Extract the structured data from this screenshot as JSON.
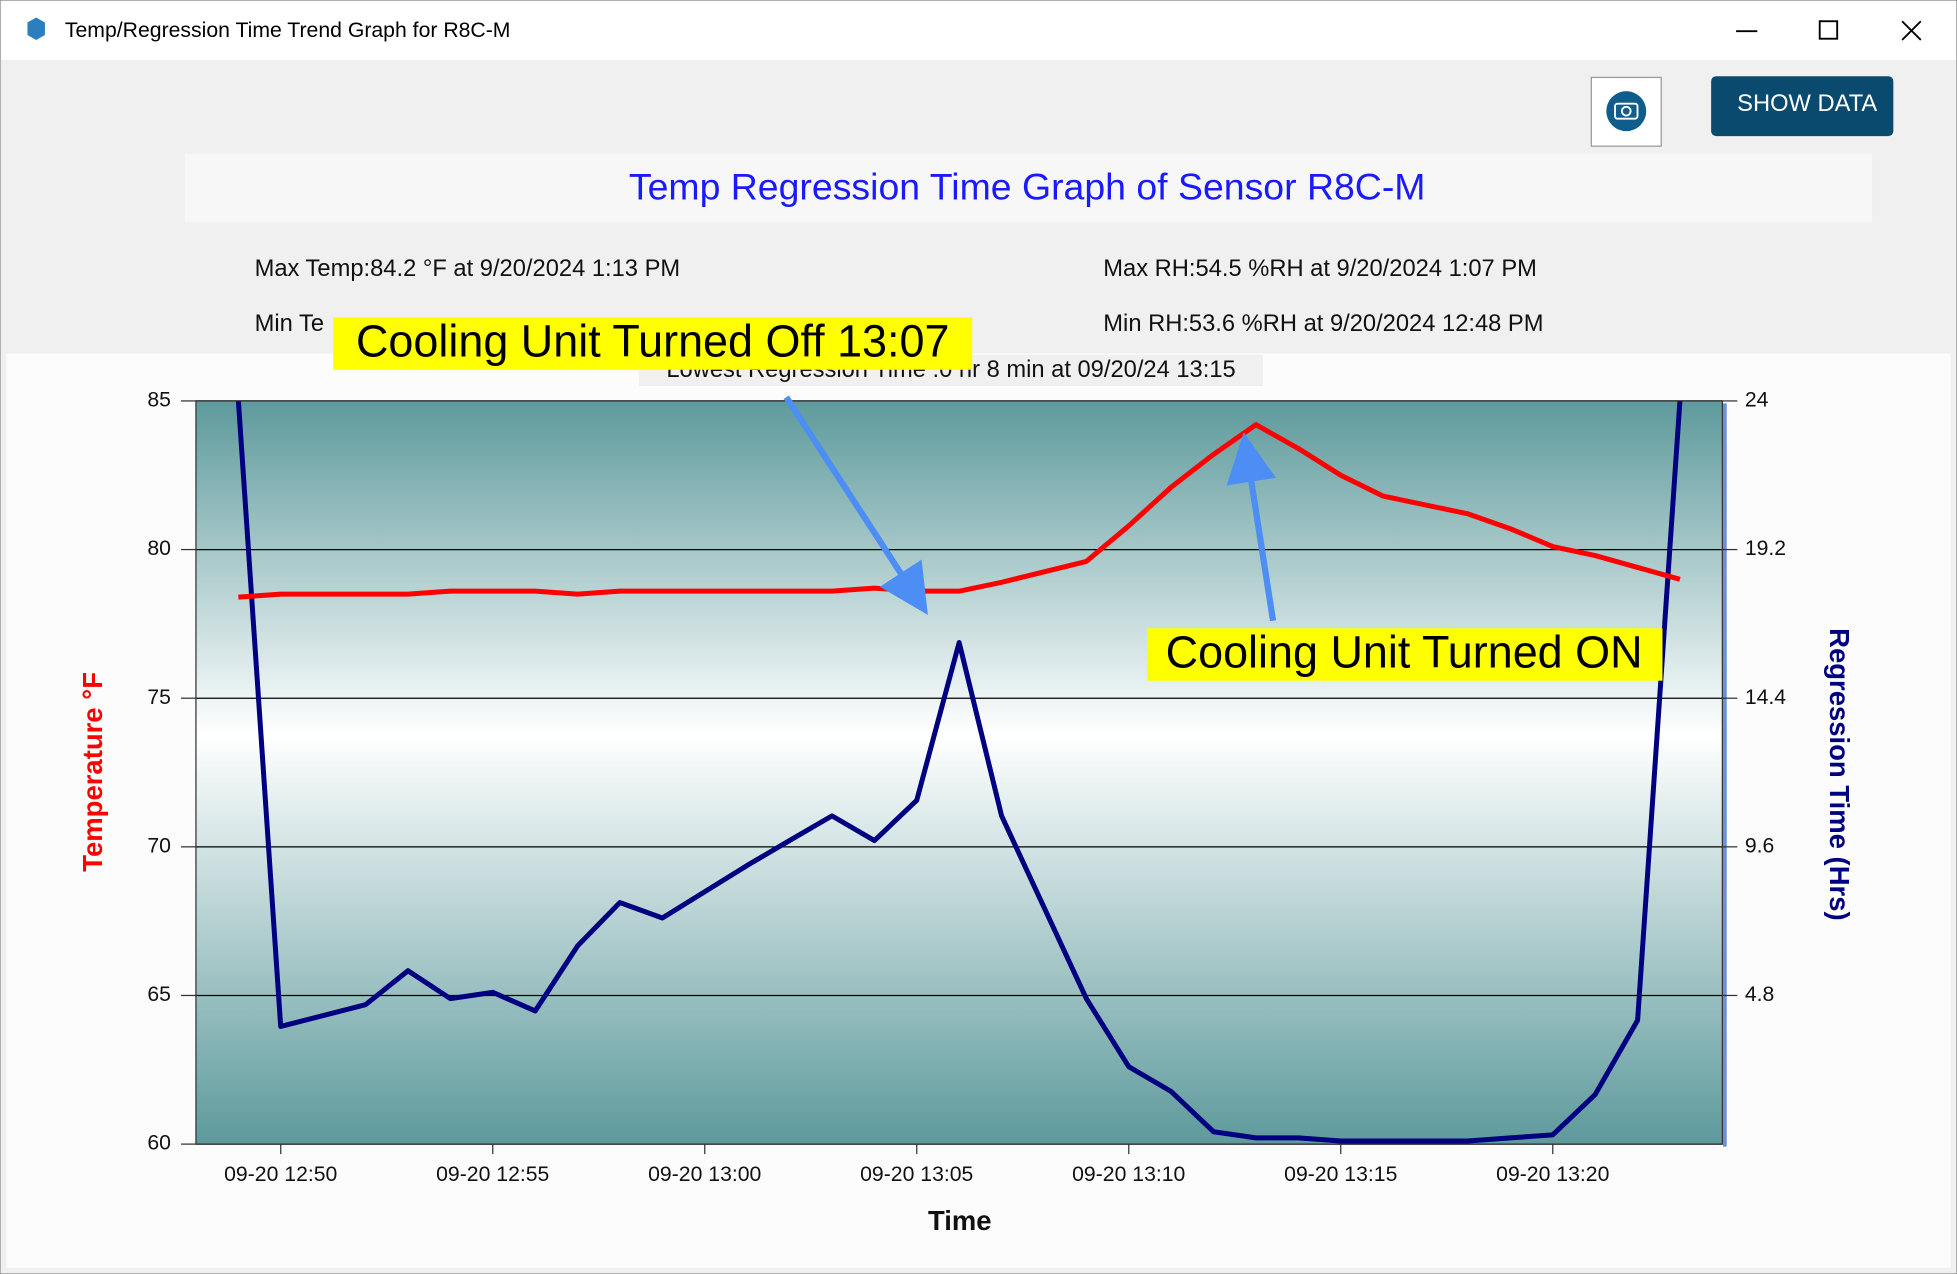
{
  "window": {
    "title": "Temp/Regression Time Trend Graph for R8C-M",
    "button": "SHOW DATA"
  },
  "header": {
    "title": "Temp  Regression Time Graph of Sensor R8C-M",
    "max_temp": "Max Temp:84.2 °F at 9/20/2024 1:13 PM",
    "min_temp": "Min Te",
    "max_rh": "Max RH:54.5 %RH at 9/20/2024 1:07 PM",
    "min_rh": "Min RH:53.6 %RH at 9/20/2024 12:48 PM",
    "lowest": "Lowest Regression Time :0 hr 8 min at 09/20/24 13:15"
  },
  "chart_data": {
    "type": "line",
    "x_label": "Time",
    "y_label": "Temperature °F",
    "y2_label": "Regression Time (Hrs)",
    "annotations": [
      "Cooling Unit Turned Off 13:07",
      "Cooling Unit Turned ON"
    ],
    "x": [
      "09-20 12:49",
      "09-20 12:50",
      "09-20 12:52",
      "09-20 12:53",
      "09-20 12:54",
      "09-20 12:55",
      "09-20 12:56",
      "09-20 12:57",
      "09-20 12:58",
      "09-20 12:59",
      "09-20 13:01",
      "09-20 13:02",
      "09-20 13:03",
      "09-20 13:04",
      "09-20 13:05",
      "09-20 13:06",
      "09-20 13:07",
      "09-20 13:09",
      "09-20 13:10",
      "09-20 13:11",
      "09-20 13:12",
      "09-20 13:13",
      "09-20 13:14",
      "09-20 13:15",
      "09-20 13:16",
      "09-20 13:18",
      "09-20 13:19",
      "09-20 13:20",
      "09-20 13:21",
      "09-20 13:22",
      "09-20 13:23"
    ],
    "series": [
      {
        "color": "#ff0000",
        "values": [
          78.4,
          78.5,
          78.5,
          78.5,
          78.6,
          78.6,
          78.6,
          78.5,
          78.6,
          78.6,
          78.6,
          78.6,
          78.6,
          78.7,
          78.6,
          78.6,
          78.9,
          79.6,
          80.8,
          82.1,
          83.2,
          84.2,
          83.4,
          82.5,
          81.8,
          81.2,
          80.7,
          80.1,
          79.8,
          79.4,
          79.0
        ]
      },
      {
        "color": "#000080",
        "axis": "y2",
        "values": [
          24,
          3.8,
          4.5,
          5.6,
          4.7,
          4.9,
          4.3,
          6.4,
          7.8,
          7.3,
          9.0,
          9.8,
          10.6,
          9.8,
          11.1,
          16.2,
          10.6,
          4.7,
          2.5,
          1.7,
          0.4,
          0.2,
          0.2,
          0.1,
          0.1,
          0.1,
          0.2,
          0.3,
          1.6,
          4.0,
          24
        ]
      }
    ],
    "xlim": [
      "09-20 12:48",
      "09-20 13:24"
    ],
    "xticks": [
      "09-20 12:50",
      "09-20 12:55",
      "09-20 13:00",
      "09-20 13:05",
      "09-20 13:10",
      "09-20 13:15",
      "09-20 13:20"
    ],
    "ylim": [
      60,
      85
    ],
    "yticks": [
      60,
      65,
      70,
      75,
      80,
      85
    ],
    "y2lim": [
      0,
      24
    ],
    "y2ticks": [
      4.8,
      9.6,
      14.4,
      19.2,
      24
    ],
    "grid": true
  }
}
